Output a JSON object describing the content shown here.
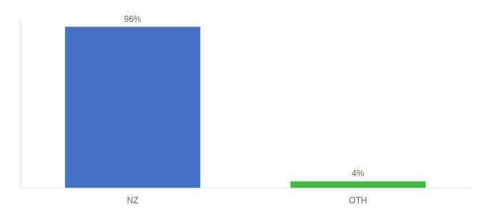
{
  "chart_data": {
    "type": "bar",
    "categories": [
      "NZ",
      "OTH"
    ],
    "values": [
      96,
      4
    ],
    "value_labels": [
      "96%",
      "4%"
    ],
    "colors": [
      "#4472c4",
      "#3dbb3d"
    ],
    "ylim": [
      0,
      100
    ],
    "data_labels": true,
    "tick_labels": "x",
    "grid": false
  }
}
